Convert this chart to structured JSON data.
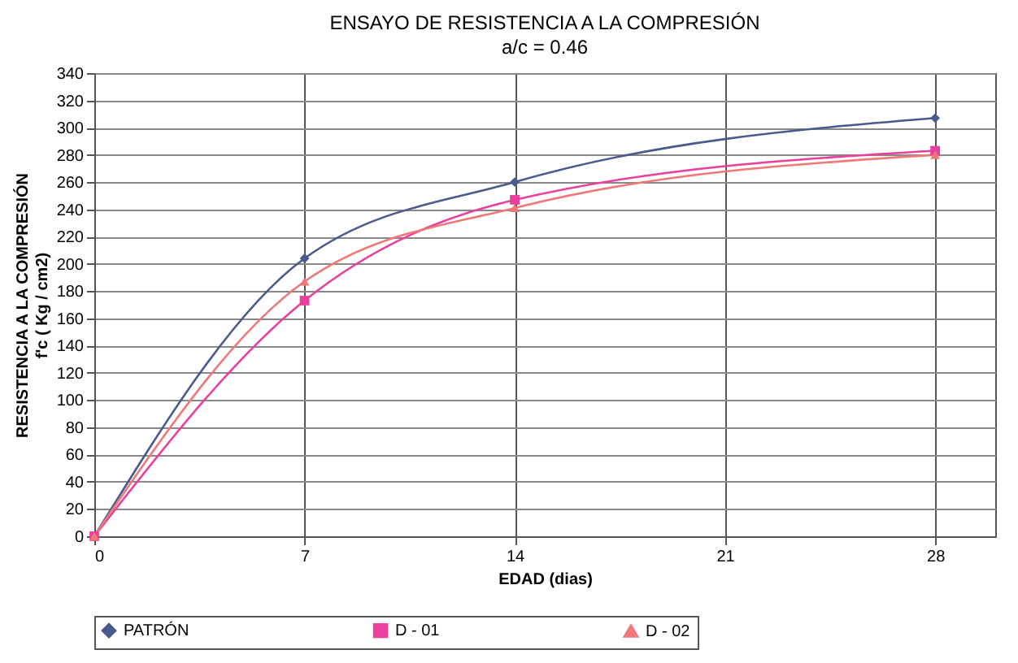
{
  "chart_data": {
    "type": "line",
    "title": "ENSAYO DE RESISTENCIA A LA COMPRESIÓN",
    "subtitle": "a/c = 0.46",
    "xlabel": "EDAD (dias)",
    "ylabel": "RESISTENCIA A LA COMPRESIÓN\nf'c ( Kg / cm2)",
    "x": [
      0,
      7,
      14,
      28
    ],
    "series": [
      {
        "name": "PATRÓN",
        "color": "#4a5a8c",
        "marker": "diamond",
        "values": [
          0,
          204,
          260,
          307
        ]
      },
      {
        "name": "D - 01",
        "color": "#e8409c",
        "marker": "square",
        "values": [
          0,
          173,
          247,
          283
        ]
      },
      {
        "name": "D - 02",
        "color": "#f07878",
        "marker": "triangle",
        "values": [
          0,
          187,
          241,
          280
        ]
      }
    ],
    "xlim": [
      0,
      30
    ],
    "xticks": [
      0,
      7,
      14,
      21,
      28
    ],
    "ylim": [
      0,
      340
    ],
    "yticks": [
      0,
      20,
      40,
      60,
      80,
      100,
      120,
      140,
      160,
      180,
      200,
      220,
      240,
      260,
      280,
      300,
      320,
      340
    ],
    "grid": true,
    "legend": "bottom",
    "line_style": "solid"
  }
}
